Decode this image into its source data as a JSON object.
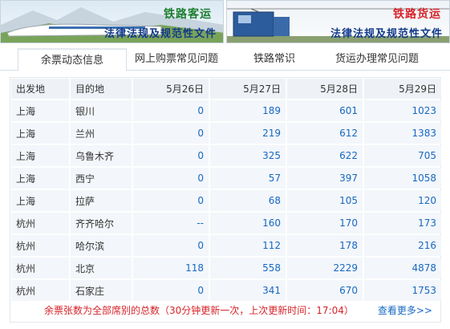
{
  "banners": {
    "left": {
      "category": "铁路客运",
      "subtitle": "法律法规及规范性文件"
    },
    "right": {
      "category": "铁路货运",
      "subtitle": "法律法规及规范性文件"
    }
  },
  "tabs": [
    {
      "label": "余票动态信息",
      "active": true
    },
    {
      "label": "网上购票常见问题",
      "active": false
    },
    {
      "label": "铁路常识",
      "active": false
    },
    {
      "label": "货运办理常见问题",
      "active": false
    }
  ],
  "table": {
    "headers": [
      "出发地",
      "目的地",
      "5月26日",
      "5月27日",
      "5月28日",
      "5月29日"
    ],
    "rows": [
      [
        "上海",
        "银川",
        "0",
        "189",
        "601",
        "1023"
      ],
      [
        "上海",
        "兰州",
        "0",
        "219",
        "612",
        "1383"
      ],
      [
        "上海",
        "乌鲁木齐",
        "0",
        "325",
        "622",
        "705"
      ],
      [
        "上海",
        "西宁",
        "0",
        "57",
        "397",
        "1058"
      ],
      [
        "上海",
        "拉萨",
        "0",
        "68",
        "105",
        "120"
      ],
      [
        "杭州",
        "齐齐哈尔",
        "--",
        "160",
        "170",
        "173"
      ],
      [
        "杭州",
        "哈尔滨",
        "0",
        "112",
        "178",
        "216"
      ],
      [
        "杭州",
        "北京",
        "118",
        "558",
        "2229",
        "4878"
      ],
      [
        "杭州",
        "石家庄",
        "0",
        "341",
        "670",
        "1753"
      ]
    ]
  },
  "footer": {
    "note": "余票张数为全部席别的总数（30分钟更新一次，上次更新时间：17:04）",
    "more_link": "查看更多>>"
  },
  "colors": {
    "link_blue": "#1769c2",
    "alert_red": "#d8232a",
    "header_bg": "#eef2f7",
    "cell_bg": "#f3f6fa"
  }
}
